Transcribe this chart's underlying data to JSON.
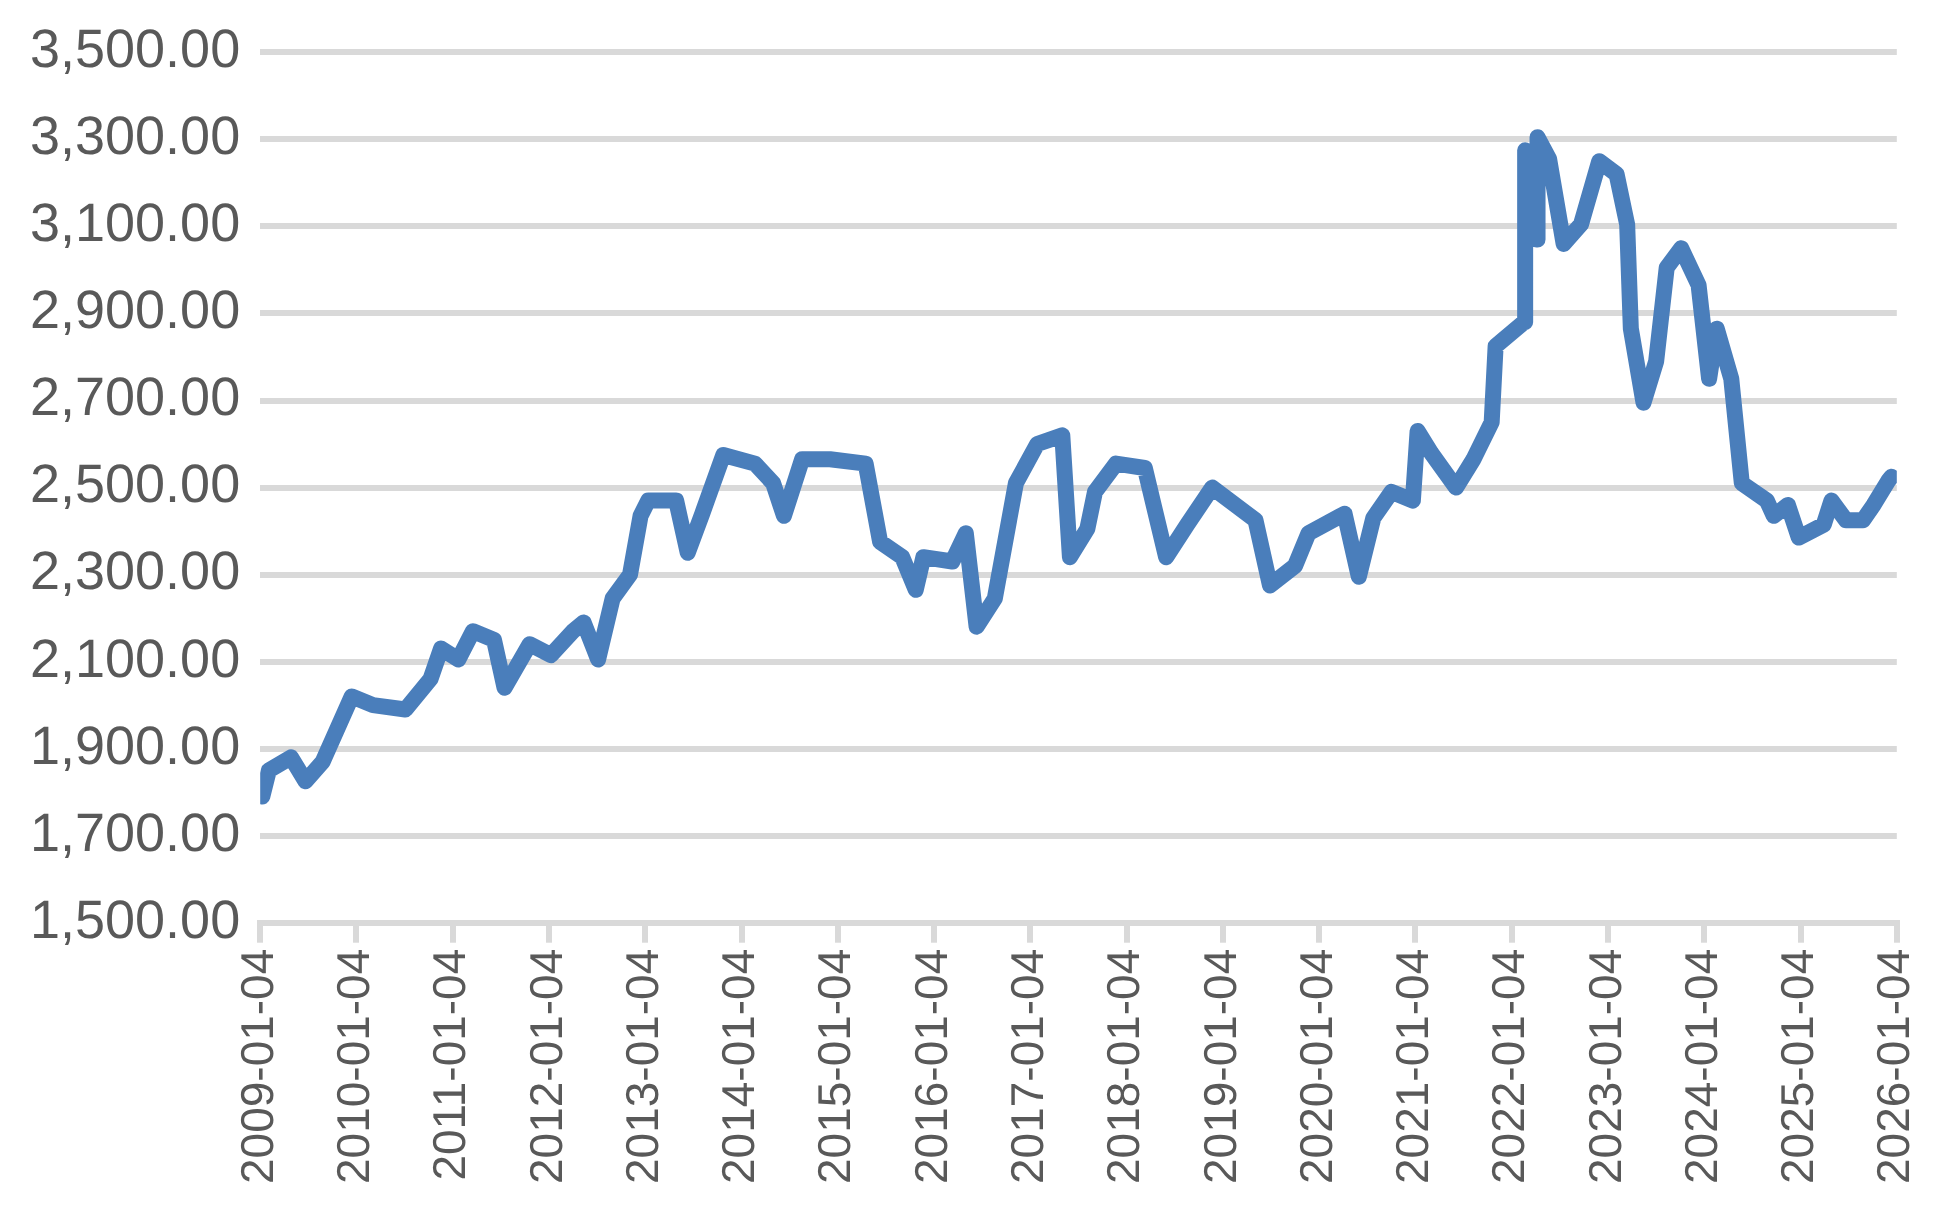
{
  "chart_data": {
    "type": "line",
    "x": [
      "2009-01-12",
      "2009-02-06",
      "2009-05-01",
      "2009-06-25",
      "2009-08-29",
      "2009-12-17",
      "2010-03-08",
      "2010-07-09",
      "2010-10-12",
      "2010-11-21",
      "2011-01-26",
      "2011-03-22",
      "2011-06-10",
      "2011-07-20",
      "2011-10-23",
      "2012-01-12",
      "2012-04-05",
      "2012-05-15",
      "2012-07-09",
      "2012-09-02",
      "2012-11-07",
      "2012-12-17",
      "2013-01-15",
      "2013-05-01",
      "2013-06-14",
      "2013-08-08",
      "2013-10-27",
      "2014-02-24",
      "2014-05-04",
      "2014-06-14",
      "2014-08-22",
      "2014-12-06",
      "2015-04-20",
      "2015-06-14",
      "2015-09-06",
      "2015-10-27",
      "2015-11-25",
      "2016-03-14",
      "2016-05-04",
      "2016-06-14",
      "2016-08-22",
      "2016-11-10",
      "2017-01-30",
      "2017-05-05",
      "2017-06-03",
      "2017-08-08",
      "2017-09-06",
      "2017-11-25",
      "2018-03-14",
      "2018-06-03",
      "2018-08-22",
      "2018-11-25",
      "2019-05-08",
      "2019-07-02",
      "2019-10-05",
      "2019-11-25",
      "2020-04-10",
      "2020-06-03",
      "2020-07-28",
      "2020-10-05",
      "2020-12-25",
      "2021-01-12",
      "2021-03-04",
      "2021-06-07",
      "2021-08-12",
      "2021-10-20",
      "2021-11-04",
      "2022-02-20",
      "2022-02-24",
      "2022-04-08",
      "2022-04-12",
      "2022-05-26",
      "2022-07-20",
      "2022-09-24",
      "2022-12-02",
      "2023-02-06",
      "2023-03-18",
      "2023-04-01",
      "2023-05-19",
      "2023-07-06",
      "2023-08-15",
      "2023-10-09",
      "2023-12-14",
      "2024-01-23",
      "2024-02-21",
      "2024-04-16",
      "2024-05-26",
      "2024-08-29",
      "2024-09-24",
      "2024-11-17",
      "2024-12-28",
      "2025-04-02",
      "2025-05-01",
      "2025-06-25",
      "2025-08-29",
      "2025-10-08",
      "2025-12-02",
      "2025-12-15"
    ],
    "series": [
      {
        "color": "#4a7ebb",
        "values": [
          1790,
          1850,
          1880,
          1825,
          1870,
          2020,
          2000,
          1990,
          2060,
          2130,
          2105,
          2170,
          2150,
          2040,
          2140,
          2115,
          2170,
          2190,
          2105,
          2245,
          2300,
          2435,
          2470,
          2470,
          2350,
          2440,
          2575,
          2555,
          2510,
          2435,
          2565,
          2565,
          2555,
          2375,
          2340,
          2265,
          2340,
          2330,
          2395,
          2180,
          2245,
          2510,
          2600,
          2620,
          2340,
          2405,
          2490,
          2555,
          2545,
          2340,
          2415,
          2500,
          2425,
          2275,
          2320,
          2395,
          2440,
          2295,
          2430,
          2490,
          2470,
          2630,
          2580,
          2500,
          2565,
          2650,
          2825,
          2880,
          3275,
          3070,
          3305,
          3255,
          3060,
          3105,
          3250,
          3220,
          3105,
          2865,
          2695,
          2790,
          3005,
          3050,
          2965,
          2750,
          2865,
          2750,
          2510,
          2470,
          2435,
          2460,
          2385,
          2415,
          2470,
          2425,
          2425,
          2460,
          2515,
          2525
        ]
      }
    ],
    "xlim": [
      "2009-01-04",
      "2026-01-04"
    ],
    "xticks": [
      "2009-01-04",
      "2010-01-04",
      "2011-01-04",
      "2012-01-04",
      "2013-01-04",
      "2014-01-04",
      "2015-01-04",
      "2016-01-04",
      "2017-01-04",
      "2018-01-04",
      "2019-01-04",
      "2020-01-04",
      "2021-01-04",
      "2022-01-04",
      "2023-01-04",
      "2024-01-04",
      "2025-01-04",
      "2026-01-04"
    ],
    "ylim": [
      1500,
      3500
    ],
    "yticks": [
      {
        "value": 1500,
        "label": "1,500.00"
      },
      {
        "value": 1700,
        "label": "1,700.00"
      },
      {
        "value": 1900,
        "label": "1,900.00"
      },
      {
        "value": 2100,
        "label": "2,100.00"
      },
      {
        "value": 2300,
        "label": "2,300.00"
      },
      {
        "value": 2500,
        "label": "2,500.00"
      },
      {
        "value": 2700,
        "label": "2,700.00"
      },
      {
        "value": 2900,
        "label": "2,900.00"
      },
      {
        "value": 3100,
        "label": "3,100.00"
      },
      {
        "value": 3300,
        "label": "3,300.00"
      },
      {
        "value": 3500,
        "label": "3,500.00"
      }
    ],
    "grid": "y",
    "legend": false,
    "marker": "none",
    "line_style": "solid"
  }
}
